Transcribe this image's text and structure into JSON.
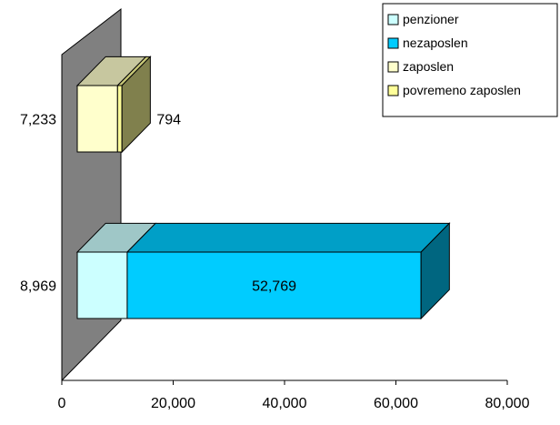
{
  "chart_data": {
    "type": "bar",
    "orientation": "horizontal",
    "stacked": true,
    "style": "3d",
    "x_ticks": [
      "0",
      "20,000",
      "40,000",
      "60,000",
      "80,000"
    ],
    "xlim": [
      0,
      80000
    ],
    "rows": [
      {
        "segments": [
          {
            "series": "zaposlen",
            "value": 7233,
            "label": "7,233"
          },
          {
            "series": "povremeno zaposlen",
            "value": 794,
            "label": "794"
          }
        ]
      },
      {
        "segments": [
          {
            "series": "penzioner",
            "value": 8969,
            "label": "8,969"
          },
          {
            "series": "nezaposlen",
            "value": 52769,
            "label": "52,769"
          }
        ]
      }
    ],
    "legend": {
      "placement": "top-right",
      "entries": [
        {
          "name": "penzioner",
          "color": "#ccffff"
        },
        {
          "name": "nezaposlen",
          "color": "#00ccff"
        },
        {
          "name": "zaposlen",
          "color": "#ffffcc"
        },
        {
          "name": "povremeno zaposlen",
          "color": "#ffff99"
        }
      ]
    },
    "colors": {
      "wall": "#808080",
      "penzioner": "#ccffff",
      "nezaposlen": "#00ccff",
      "zaposlen": "#ffffcc",
      "povremeno zaposlen": "#ffff99"
    }
  }
}
